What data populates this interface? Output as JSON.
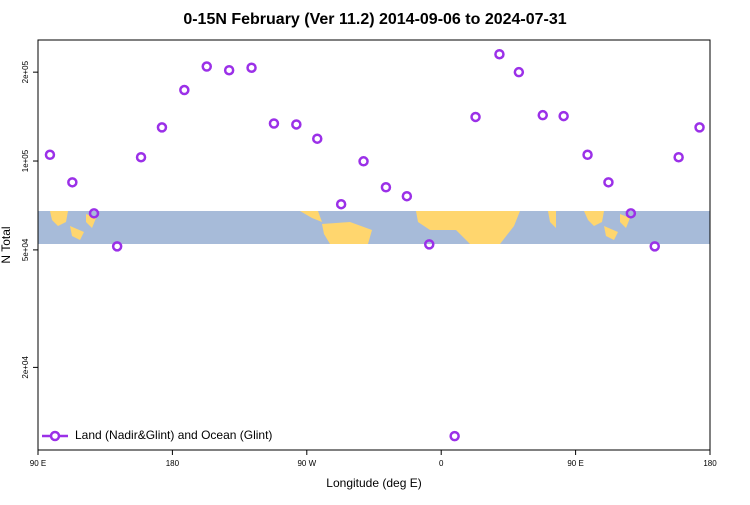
{
  "chart_data": {
    "type": "scatter",
    "title": "0-15N February (Ver 11.2)   2014-09-06 to 2024-07-31",
    "x_label": "Longitude (deg E)",
    "y_label": "N Total",
    "xlim": [
      90,
      540
    ],
    "ylim": [
      10500,
      257000
    ],
    "y_log": true,
    "legend_corner": "bottom left",
    "xticks": [
      {
        "value": 90,
        "label": "90 E"
      },
      {
        "value": 180,
        "label": "180"
      },
      {
        "value": 270,
        "label": "90 W"
      },
      {
        "value": 360,
        "label": "0"
      },
      {
        "value": 450,
        "label": "90 E"
      },
      {
        "value": 540,
        "label": "180"
      }
    ],
    "yticks": [
      {
        "value": 20000,
        "label": "2e+04"
      },
      {
        "value": 50000,
        "label": "5e+04"
      },
      {
        "value": 100000,
        "label": "1e+05"
      },
      {
        "value": 200000,
        "label": "2e+05"
      }
    ],
    "series": [
      {
        "name": "Land (Nadir&Glint) and Ocean (Glint)",
        "color": "#9b30e8",
        "x": [
          98,
          113,
          127.5,
          143,
          159,
          173,
          188,
          203,
          218,
          233,
          248,
          263,
          277,
          293,
          308,
          323,
          337,
          352,
          369,
          383,
          399,
          412,
          428,
          442,
          458,
          472,
          487,
          503,
          519,
          533
        ],
        "values": [
          105000,
          84700,
          66500,
          51400,
          103000,
          130000,
          174000,
          209000,
          203000,
          207000,
          134000,
          133000,
          119000,
          71400,
          99800,
          81500,
          76000,
          52200,
          11700,
          141000,
          230000,
          200000,
          143000,
          142000,
          105000,
          84700,
          66500,
          51400,
          103000,
          130000
        ]
      }
    ]
  }
}
